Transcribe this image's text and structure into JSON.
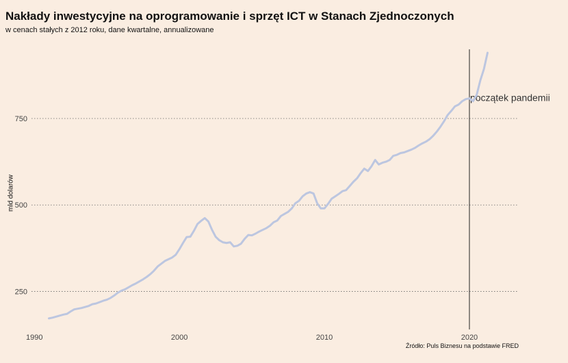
{
  "chart_data": {
    "type": "line",
    "title": "Nakłady inwestycyjne na oprogramowanie i sprzęt ICT w Stanach Zjednoczonych",
    "subtitle": "w cenach stałych z 2012 roku, dane kwartalne, annualizowane",
    "ylabel": "mld dolarów",
    "xlabel": "",
    "source": "Źródło: Puls Biznesu na podstawie FRED",
    "xlim": [
      1989.8,
      2023.4
    ],
    "ylim": [
      140,
      950
    ],
    "x_ticks": [
      1990,
      2000,
      2010,
      2020
    ],
    "y_ticks": [
      250,
      500,
      750
    ],
    "grid": "horizontal dotted",
    "line_color": "#bcc6e0",
    "annotation": {
      "x": 2020.0,
      "label": "początek pandemii"
    },
    "points": [
      [
        1991.0,
        172
      ],
      [
        1991.25,
        174
      ],
      [
        1991.5,
        177
      ],
      [
        1991.75,
        180
      ],
      [
        1992.0,
        183
      ],
      [
        1992.25,
        185
      ],
      [
        1992.5,
        192
      ],
      [
        1992.75,
        198
      ],
      [
        1993.0,
        200
      ],
      [
        1993.25,
        202
      ],
      [
        1993.5,
        205
      ],
      [
        1993.75,
        208
      ],
      [
        1994.0,
        213
      ],
      [
        1994.25,
        215
      ],
      [
        1994.5,
        219
      ],
      [
        1994.75,
        223
      ],
      [
        1995.0,
        226
      ],
      [
        1995.25,
        231
      ],
      [
        1995.5,
        238
      ],
      [
        1995.75,
        246
      ],
      [
        1996.0,
        252
      ],
      [
        1996.25,
        256
      ],
      [
        1996.5,
        262
      ],
      [
        1996.75,
        268
      ],
      [
        1997.0,
        273
      ],
      [
        1997.25,
        279
      ],
      [
        1997.5,
        285
      ],
      [
        1997.75,
        292
      ],
      [
        1998.0,
        300
      ],
      [
        1998.25,
        310
      ],
      [
        1998.5,
        322
      ],
      [
        1998.75,
        330
      ],
      [
        1999.0,
        338
      ],
      [
        1999.25,
        343
      ],
      [
        1999.5,
        348
      ],
      [
        1999.75,
        356
      ],
      [
        2000.0,
        372
      ],
      [
        2000.25,
        390
      ],
      [
        2000.5,
        407
      ],
      [
        2000.75,
        408
      ],
      [
        2001.0,
        425
      ],
      [
        2001.25,
        445
      ],
      [
        2001.5,
        454
      ],
      [
        2001.75,
        462
      ],
      [
        2002.0,
        452
      ],
      [
        2002.25,
        428
      ],
      [
        2002.5,
        408
      ],
      [
        2002.75,
        398
      ],
      [
        2003.0,
        392
      ],
      [
        2003.25,
        390
      ],
      [
        2003.5,
        392
      ],
      [
        2003.75,
        380
      ],
      [
        2004.0,
        382
      ],
      [
        2004.25,
        388
      ],
      [
        2004.5,
        402
      ],
      [
        2004.75,
        413
      ],
      [
        2005.0,
        412
      ],
      [
        2005.25,
        417
      ],
      [
        2005.5,
        423
      ],
      [
        2005.75,
        428
      ],
      [
        2006.0,
        433
      ],
      [
        2006.25,
        440
      ],
      [
        2006.5,
        450
      ],
      [
        2006.75,
        455
      ],
      [
        2007.0,
        468
      ],
      [
        2007.25,
        474
      ],
      [
        2007.5,
        480
      ],
      [
        2007.75,
        490
      ],
      [
        2008.0,
        505
      ],
      [
        2008.25,
        512
      ],
      [
        2008.5,
        525
      ],
      [
        2008.75,
        533
      ],
      [
        2009.0,
        537
      ],
      [
        2009.25,
        533
      ],
      [
        2009.5,
        505
      ],
      [
        2009.75,
        490
      ],
      [
        2010.0,
        490
      ],
      [
        2010.25,
        503
      ],
      [
        2010.5,
        518
      ],
      [
        2010.75,
        525
      ],
      [
        2011.0,
        532
      ],
      [
        2011.25,
        540
      ],
      [
        2011.5,
        543
      ],
      [
        2011.75,
        555
      ],
      [
        2012.0,
        567
      ],
      [
        2012.25,
        577
      ],
      [
        2012.5,
        592
      ],
      [
        2012.75,
        605
      ],
      [
        2013.0,
        598
      ],
      [
        2013.25,
        612
      ],
      [
        2013.5,
        630
      ],
      [
        2013.75,
        617
      ],
      [
        2014.0,
        622
      ],
      [
        2014.25,
        625
      ],
      [
        2014.5,
        630
      ],
      [
        2014.75,
        642
      ],
      [
        2015.0,
        645
      ],
      [
        2015.25,
        650
      ],
      [
        2015.5,
        652
      ],
      [
        2015.75,
        656
      ],
      [
        2016.0,
        660
      ],
      [
        2016.25,
        665
      ],
      [
        2016.5,
        672
      ],
      [
        2016.75,
        678
      ],
      [
        2017.0,
        683
      ],
      [
        2017.25,
        690
      ],
      [
        2017.5,
        700
      ],
      [
        2017.75,
        712
      ],
      [
        2018.0,
        726
      ],
      [
        2018.25,
        742
      ],
      [
        2018.5,
        760
      ],
      [
        2018.75,
        772
      ],
      [
        2019.0,
        785
      ],
      [
        2019.25,
        790
      ],
      [
        2019.5,
        800
      ],
      [
        2019.75,
        806
      ],
      [
        2020.0,
        808
      ],
      [
        2020.25,
        800
      ],
      [
        2020.5,
        818
      ],
      [
        2020.75,
        860
      ],
      [
        2021.0,
        893
      ],
      [
        2021.25,
        940
      ]
    ]
  }
}
